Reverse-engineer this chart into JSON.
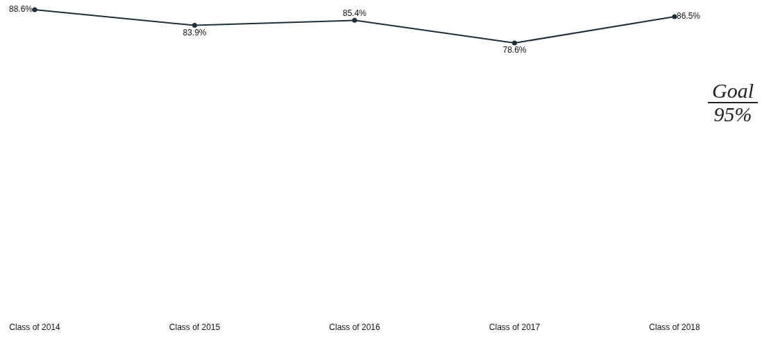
{
  "chart_data": {
    "type": "line",
    "categories": [
      "Class of 2014",
      "Class of 2015",
      "Class of 2016",
      "Class of 2017",
      "Class of 2018"
    ],
    "series": [
      {
        "color": "#1f2f3a",
        "values": [
          88.6,
          83.9,
          85.4,
          78.6,
          86.5
        ],
        "value_labels": [
          "88.6%",
          "83.9%",
          "85.4%",
          "78.6%",
          "86.5%"
        ]
      }
    ],
    "tick_labels": "x",
    "grid": false,
    "legend": false,
    "marker": "circle",
    "line_style": "solid",
    "annotations": [
      "Goal 95%"
    ]
  }
}
